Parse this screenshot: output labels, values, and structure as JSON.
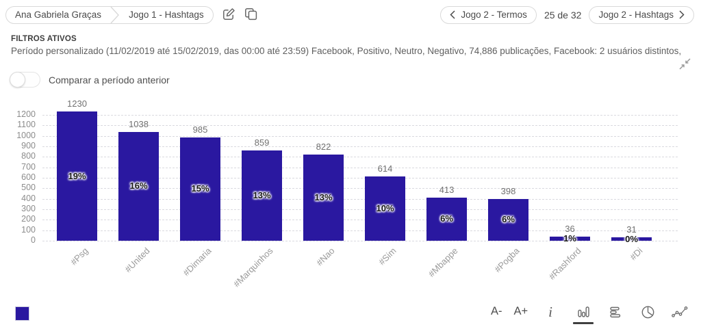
{
  "header": {
    "breadcrumb": {
      "items": [
        "Ana Gabriela Graças",
        "Jogo 1 - Hashtags"
      ]
    },
    "pager": {
      "prev": "Jogo 2 - Termos",
      "position": "25 de 32",
      "next": "Jogo 2 - Hashtags"
    }
  },
  "filters": {
    "title": "FILTROS ATIVOS",
    "description": "Período personalizado (11/02/2019 até 15/02/2019, das 00:00 até 23:59) Facebook, Positivo, Neutro, Negativo, 74,886 publicações, Facebook: 2 usuários distintos,"
  },
  "compare": {
    "label": "Comparar a período anterior",
    "enabled": false
  },
  "chart_data": {
    "type": "bar",
    "categories": [
      "#Psg",
      "#United",
      "#Dimaria",
      "#Marquinhos",
      "#Nao",
      "#Sim",
      "#Mbappe",
      "#Pogba",
      "#Rashford",
      "#Di"
    ],
    "values": [
      1230,
      1038,
      985,
      859,
      822,
      614,
      413,
      398,
      36,
      31
    ],
    "percentages": [
      "19%",
      "16%",
      "15%",
      "13%",
      "13%",
      "10%",
      "6%",
      "6%",
      "1%",
      "0%"
    ],
    "title": "",
    "xlabel": "",
    "ylabel": "",
    "ylim": [
      0,
      1200
    ],
    "ytick_step": 100,
    "grid": "horizontal-dashed",
    "bar_color": "#2a18a0",
    "legend_position": "bottom-left"
  },
  "toolbar": {
    "font_decrease": "A-",
    "font_increase": "A+",
    "selected_chart_type": "column"
  },
  "icons": {
    "edit": "edit-icon",
    "copy": "copy-icon",
    "chevron_left": "chevron-left-icon",
    "chevron_right": "chevron-right-icon",
    "collapse": "collapse-icon",
    "info": "info-icon",
    "column_chart": "column-chart-icon",
    "horizontal_bar_chart": "horizontal-bar-chart-icon",
    "pie_chart": "pie-chart-icon",
    "line_chart": "line-chart-icon"
  },
  "colors": {
    "bar": "#2a18a0",
    "grid": "#d9d9df",
    "axis_text": "#8c8c8c",
    "category_text": "#9a9a9a",
    "value_text": "#707070"
  }
}
